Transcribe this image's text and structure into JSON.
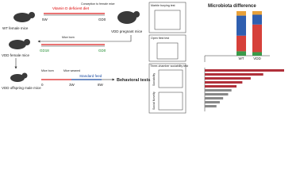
{
  "wt_label": "WT female mice",
  "diet": "Vitamin D deficient diet",
  "conception": "Conception to female mice",
  "t1_start": "5W",
  "t1_end": "GD0",
  "pregnant_label": "VDD pregnant mice",
  "born1": "Mice born",
  "t2_start": "GD18",
  "t2_end": "GD0",
  "vdd_female_label": "VDD female mice",
  "offspring_label": "VDD offspring male mice",
  "born2": "Mice born",
  "weaned": "Mice weaned",
  "feed": "Standard feed",
  "t3_a": "0",
  "t3_b": "3W",
  "t3_c": "8W",
  "behavior": "Behavioral tests",
  "marble": "Marble burying test",
  "open_field": "Open field test",
  "three_chamber": "Three-chamber sociability test",
  "sociability": "Sociability",
  "novelty": "Social Novelty",
  "microbiota": {
    "title": "Microbiota difference",
    "categories": [
      "WT",
      "VDD"
    ],
    "colors": [
      "#3a9a4a",
      "#d6403a",
      "#2f5fb0",
      "#e8a13a"
    ],
    "segments": [
      [
        10,
        35,
        45,
        10
      ],
      [
        8,
        62,
        22,
        8
      ]
    ]
  },
  "lda": {
    "values": [
      95,
      70,
      55,
      45,
      38,
      32,
      28,
      22,
      18,
      14
    ],
    "colors": [
      "#b0303a",
      "#b0303a",
      "#b0303a",
      "#b0303a",
      "#b0303a",
      "#888888",
      "#888888",
      "#888888",
      "#888888",
      "#888888"
    ]
  }
}
